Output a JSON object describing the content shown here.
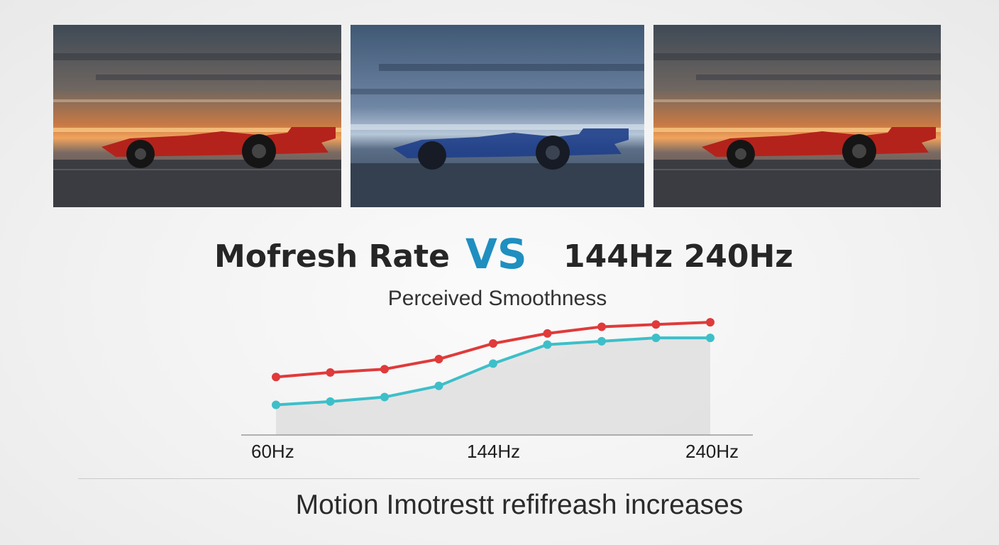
{
  "headline": {
    "left": "Mofresh Rate",
    "vs": "VS",
    "right": "144Hz 240Hz"
  },
  "panels": [
    {
      "car_color": "#b3231c",
      "sky": "warm-sunset"
    },
    {
      "car_color": "#1f3f8a",
      "sky": "cool-blue"
    },
    {
      "car_color": "#b3231c",
      "sky": "warm-sunset"
    }
  ],
  "chart_data": {
    "type": "line",
    "title": "Perceived Smoothness",
    "x_ticks": [
      "60Hz",
      "144Hz",
      "240Hz"
    ],
    "x": [
      1,
      2,
      3,
      4,
      5,
      6,
      7,
      8,
      9
    ],
    "series": [
      {
        "color": "#e03a3a",
        "values": [
          52,
          56,
          59,
          68,
          82,
          91,
          97,
          99,
          101
        ]
      },
      {
        "color": "#3dbfc9",
        "values": [
          27,
          30,
          34,
          44,
          64,
          81,
          84,
          87,
          87
        ]
      }
    ],
    "area_color": "#dcdcdc",
    "ylim": [
      0,
      110
    ],
    "grid": false
  },
  "caption": "Motion Imotrestt refifreash increases"
}
